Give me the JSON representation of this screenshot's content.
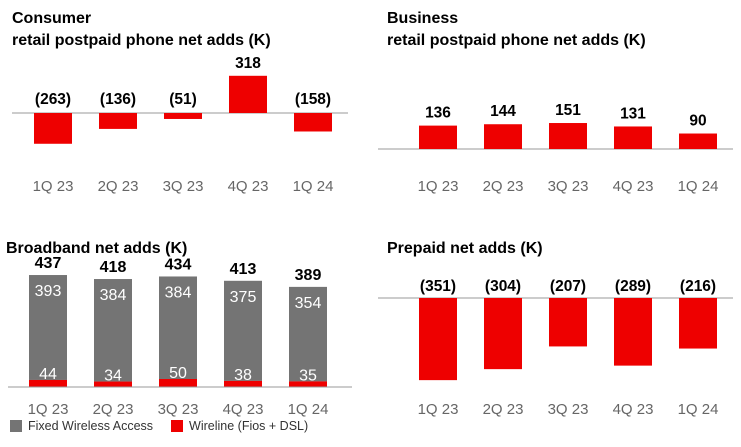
{
  "colors": {
    "red": "#ee0000",
    "gray": "#747474",
    "axis": "#999999",
    "tick": "#666666"
  },
  "legend": {
    "gray_label": "Fixed Wireless Access",
    "red_label": "Wireline (Fios + DSL)"
  },
  "chart_data": [
    {
      "id": "consumer",
      "type": "bar",
      "title": [
        "Consumer",
        "retail postpaid phone net adds (K)"
      ],
      "categories": [
        "1Q 23",
        "2Q 23",
        "3Q 23",
        "4Q 23",
        "1Q 24"
      ],
      "values": [
        -263,
        -136,
        -51,
        318,
        -158
      ],
      "labels": [
        "(263)",
        "(136)",
        "(51)",
        "318",
        "(158)"
      ]
    },
    {
      "id": "business",
      "type": "bar",
      "title": [
        "Business",
        "retail postpaid phone net adds (K)"
      ],
      "categories": [
        "1Q 23",
        "2Q 23",
        "3Q 23",
        "4Q 23",
        "1Q 24"
      ],
      "values": [
        136,
        144,
        151,
        131,
        90
      ],
      "labels": [
        "136",
        "144",
        "151",
        "131",
        "90"
      ]
    },
    {
      "id": "broadband",
      "type": "stacked-bar",
      "title": [
        "Broadband net adds (K)"
      ],
      "categories": [
        "1Q 23",
        "2Q 23",
        "3Q 23",
        "4Q 23",
        "1Q 24"
      ],
      "series": [
        {
          "name": "Wireline (Fios + DSL)",
          "values": [
            44,
            34,
            50,
            38,
            35
          ]
        },
        {
          "name": "Fixed Wireless Access",
          "values": [
            393,
            384,
            384,
            375,
            354
          ]
        }
      ],
      "totals": [
        437,
        418,
        434,
        413,
        389
      ]
    },
    {
      "id": "prepaid",
      "type": "bar",
      "title": [
        "Prepaid net adds (K)"
      ],
      "categories": [
        "1Q 23",
        "2Q 23",
        "3Q 23",
        "4Q 23",
        "1Q 24"
      ],
      "values": [
        -351,
        -304,
        -207,
        -289,
        -216
      ],
      "labels": [
        "(351)",
        "(304)",
        "(207)",
        "(289)",
        "(216)"
      ]
    }
  ]
}
